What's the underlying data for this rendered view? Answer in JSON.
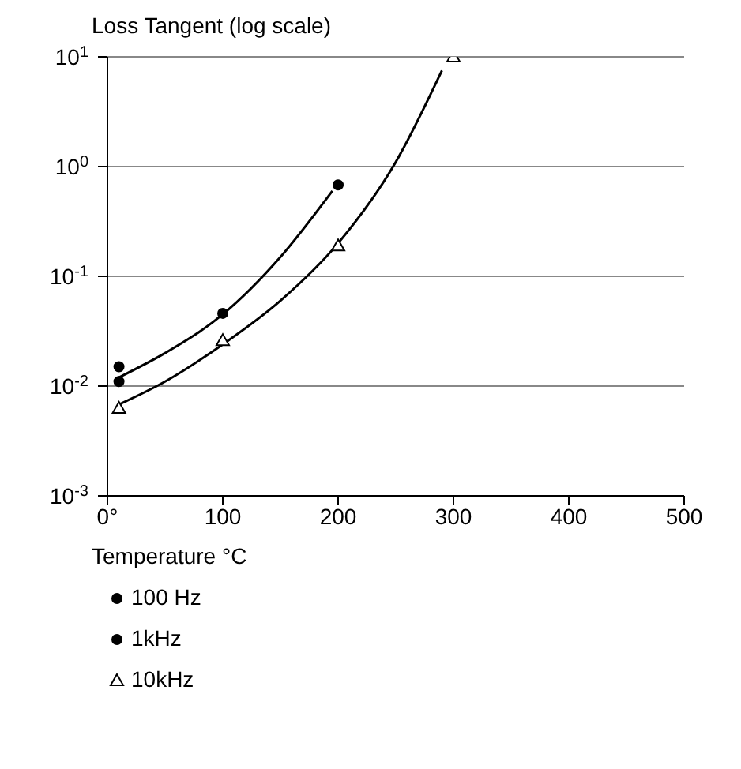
{
  "chart_data": {
    "type": "scatter",
    "xlabel": "Temperature °C",
    "ylabel": "Loss Tangent (log scale)",
    "log": "y",
    "grid": "y",
    "legend": "bottom",
    "xlim": [
      0,
      500
    ],
    "xticks": [
      {
        "value": 0,
        "label": "0°"
      },
      100,
      200,
      300,
      400,
      500
    ],
    "ylim": [
      0.001,
      10
    ],
    "yticks": [
      {
        "value": 0.001,
        "label": "10$^{-3}$"
      },
      {
        "value": 0.01,
        "label": "10$^{-2}$"
      },
      {
        "value": 0.1,
        "label": "10$^{-1}$"
      },
      {
        "value": 1,
        "label": "10$^{0}$"
      },
      {
        "value": 10,
        "label": "10$^{1}$"
      }
    ],
    "series": [
      {
        "name": "100 Hz",
        "color": "#000000",
        "marker": "circle",
        "x": [
          10
        ],
        "values": [
          0.015
        ]
      },
      {
        "name": "1kHz",
        "color": "#000000",
        "marker": "circle",
        "x": [
          10,
          100,
          200
        ],
        "values": [
          0.011,
          0.046,
          0.68
        ]
      },
      {
        "name": "10kHz",
        "color": "#000000",
        "marker": "triangle",
        "x": [
          10,
          100,
          200,
          300
        ],
        "values": [
          0.0063,
          0.026,
          0.19,
          10
        ]
      },
      {
        "type": "line",
        "color": "#000000",
        "marker": "none",
        "x": [
          10,
          50,
          100,
          150,
          195
        ],
        "values": [
          0.012,
          0.02,
          0.045,
          0.15,
          0.6
        ]
      },
      {
        "type": "line",
        "color": "#000000",
        "marker": "none",
        "x": [
          10,
          50,
          100,
          150,
          200,
          250,
          290
        ],
        "values": [
          0.0068,
          0.011,
          0.024,
          0.06,
          0.2,
          1.1,
          7.5
        ]
      }
    ]
  }
}
